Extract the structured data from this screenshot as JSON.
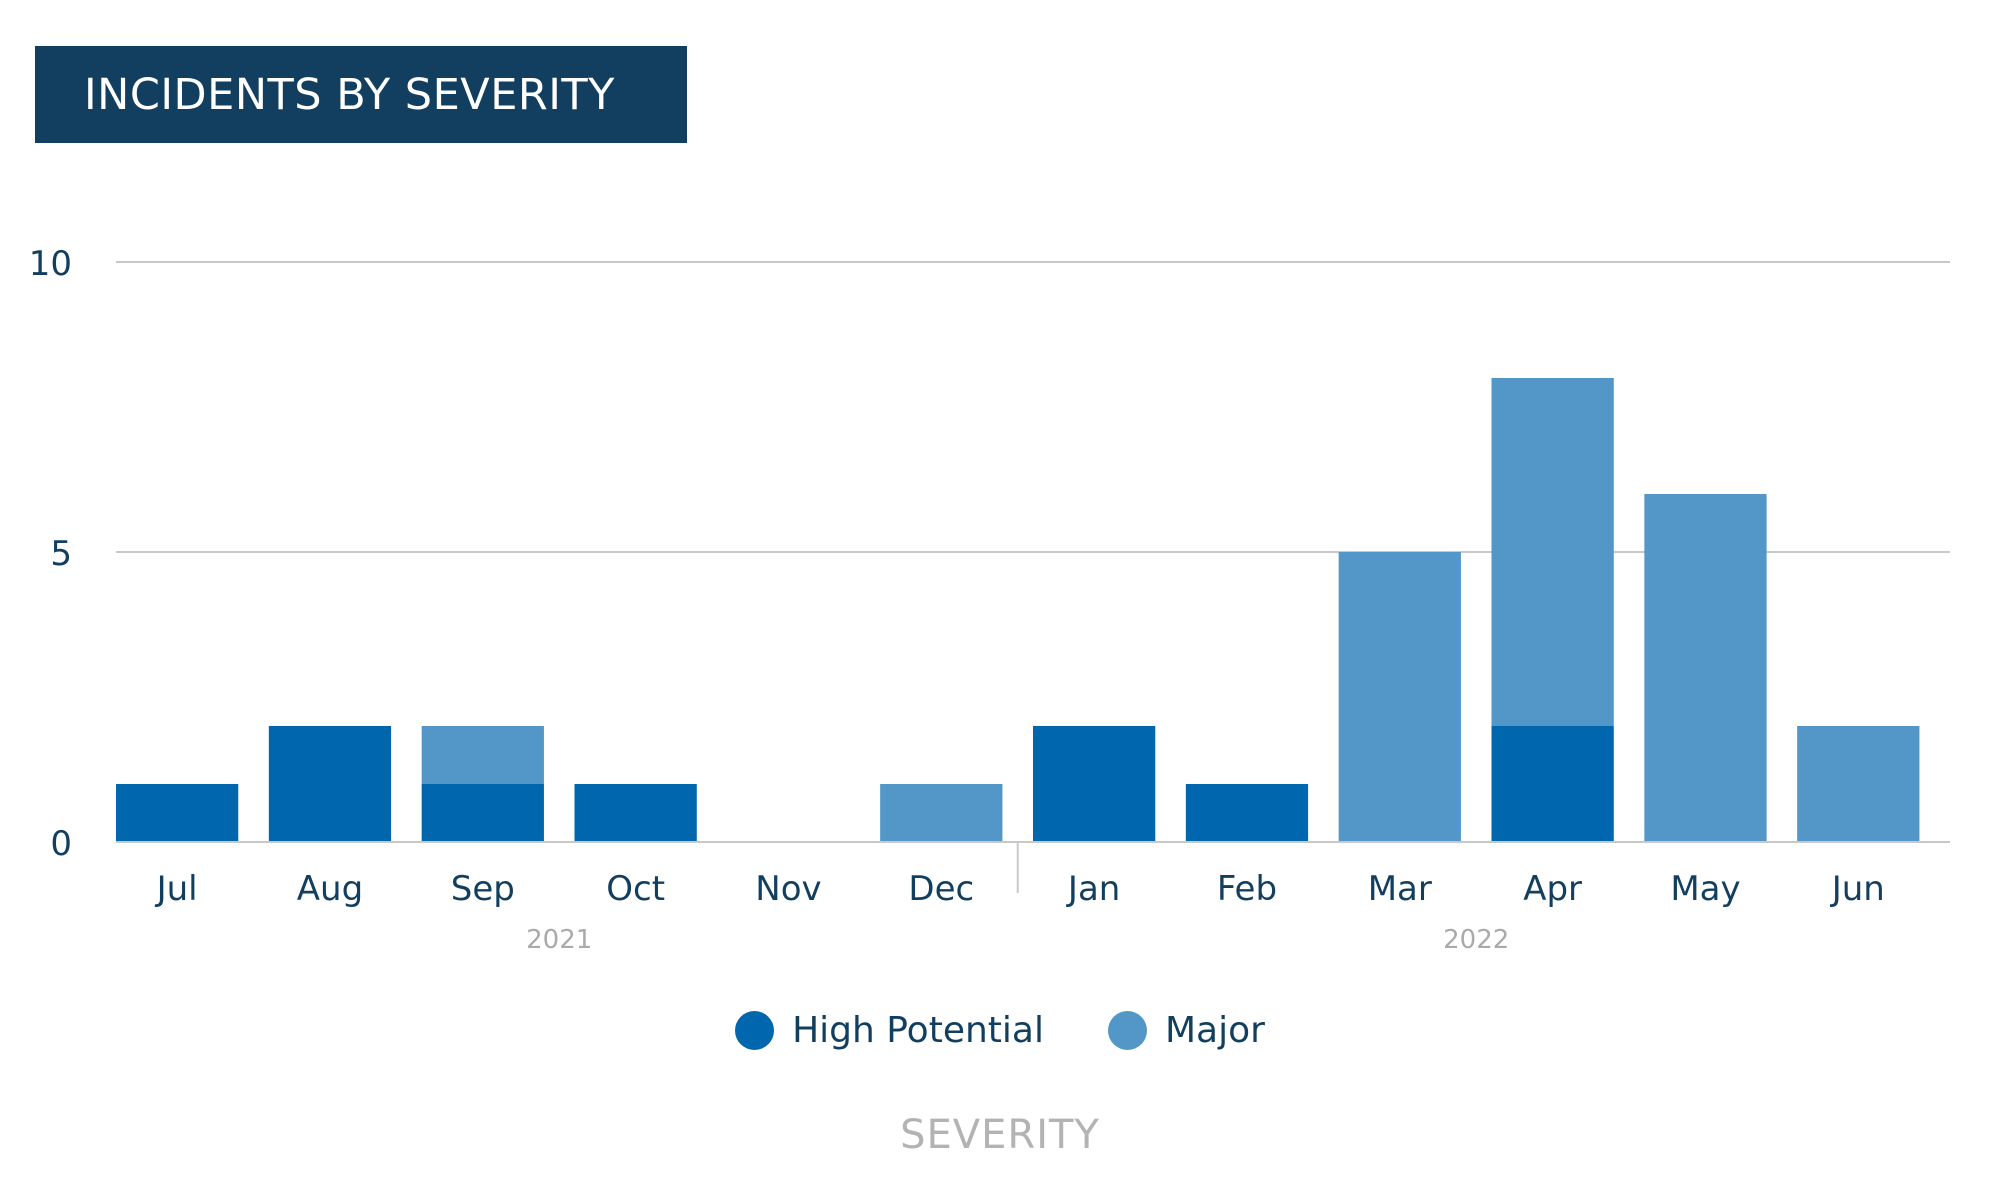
{
  "header": {
    "title": "INCIDENTS BY SEVERITY"
  },
  "legend": {
    "title": "SEVERITY",
    "items": [
      {
        "label": "High Potential",
        "color": "#0066ad"
      },
      {
        "label": "Major",
        "color": "#5297c7"
      }
    ]
  },
  "chart_data": {
    "type": "bar",
    "stacked": true,
    "title": "INCIDENTS BY SEVERITY",
    "xlabel": "",
    "ylabel": "",
    "ylim": [
      0,
      10
    ],
    "yticks": [
      0,
      5,
      10
    ],
    "grid": true,
    "legend_placement": "bottom",
    "legend_title": "SEVERITY",
    "categories": [
      "Jul",
      "Aug",
      "Sep",
      "Oct",
      "Nov",
      "Dec",
      "Jan",
      "Feb",
      "Mar",
      "Apr",
      "May",
      "Jun"
    ],
    "year_groups": [
      {
        "label": "2021",
        "categories": [
          "Jul",
          "Aug",
          "Sep",
          "Oct",
          "Nov",
          "Dec"
        ]
      },
      {
        "label": "2022",
        "categories": [
          "Jan",
          "Feb",
          "Mar",
          "Apr",
          "May",
          "Jun"
        ]
      }
    ],
    "series": [
      {
        "name": "High Potential",
        "color": "#0066ad",
        "values": [
          1,
          2,
          1,
          1,
          0,
          0,
          2,
          1,
          0,
          2,
          0,
          0
        ]
      },
      {
        "name": "Major",
        "color": "#5297c7",
        "values": [
          0,
          0,
          1,
          0,
          0,
          1,
          0,
          0,
          5,
          6,
          6,
          2
        ]
      }
    ]
  }
}
